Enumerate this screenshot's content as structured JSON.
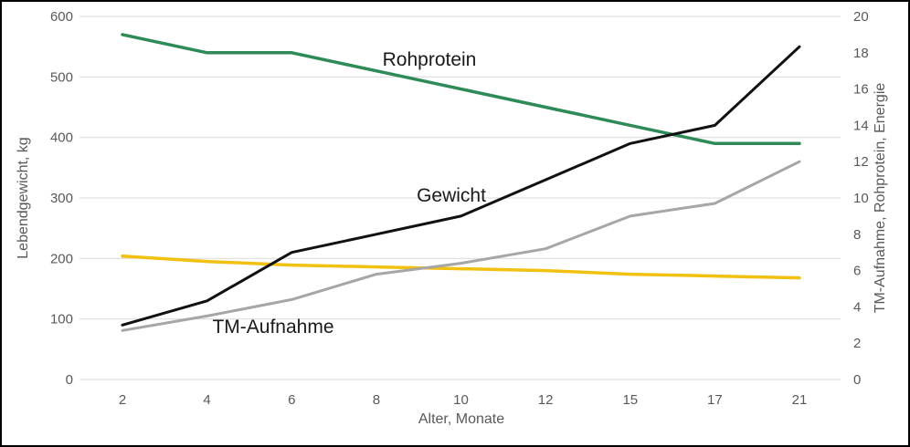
{
  "chart_data": {
    "type": "line",
    "title": "",
    "xlabel": "Alter, Monate",
    "ylabel_left": "Lebendgewicht, kg",
    "ylabel_right": "TM-Aufnahme, Rohprotein, Energie",
    "categories": [
      "2",
      "4",
      "6",
      "8",
      "10",
      "12",
      "15",
      "17",
      "21"
    ],
    "left_axis": {
      "min": 0,
      "max": 600,
      "step": 100
    },
    "right_axis": {
      "min": 0,
      "max": 20,
      "step": 2
    },
    "grid": "horizontal-at-left-ticks",
    "legend_position": "inline-labels",
    "series": [
      {
        "name": "Energie",
        "axis": "right",
        "color": "#f2c011",
        "stroke_width": 3.5,
        "values": [
          6.8,
          6.5,
          6.3,
          6.2,
          6.1,
          6.0,
          5.8,
          5.7,
          5.6
        ]
      },
      {
        "name": "TM-Aufnahme",
        "axis": "right",
        "color": "#a6a6a6",
        "stroke_width": 3,
        "values": [
          2.7,
          3.5,
          4.4,
          5.8,
          6.4,
          7.2,
          9.0,
          9.7,
          12.0
        ]
      },
      {
        "name": "Rohprotein",
        "axis": "right",
        "color": "#2e8b57",
        "stroke_width": 3.5,
        "values": [
          19,
          18,
          18,
          17,
          16,
          15,
          14,
          13,
          13
        ]
      },
      {
        "name": "Gewicht",
        "axis": "left",
        "color": "#111111",
        "stroke_width": 3,
        "values": [
          90,
          130,
          210,
          240,
          270,
          330,
          390,
          420,
          550
        ]
      }
    ],
    "annotations": [
      {
        "text": "Rohprotein"
      },
      {
        "text": "Gewicht"
      },
      {
        "text": "TM-Aufnahme"
      }
    ],
    "palette": {
      "grid_color": "#d9d9d9",
      "axis_text_color": "#595959",
      "annotation_color": "#1a1a1a",
      "background": "#ffffff",
      "frame_border": "#000000"
    }
  }
}
